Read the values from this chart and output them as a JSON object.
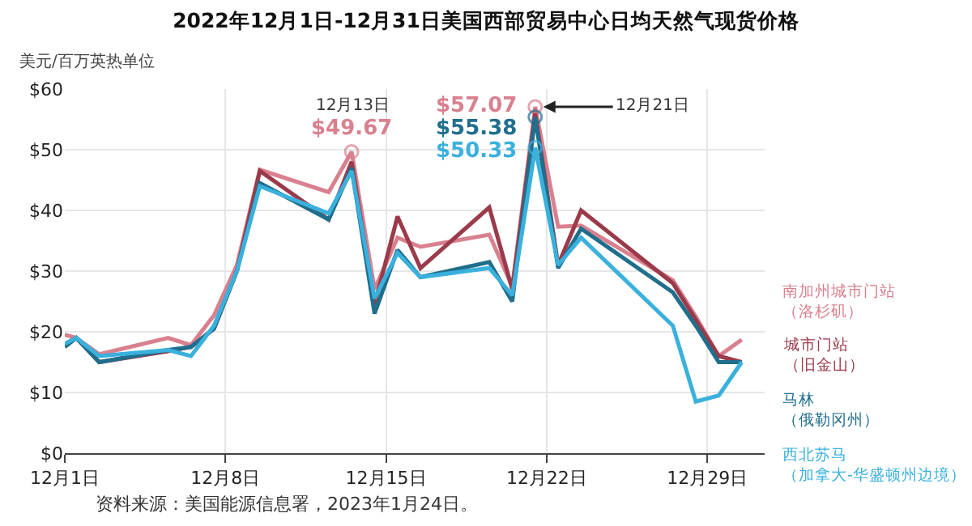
{
  "chart_data": {
    "type": "line",
    "title": "2022年12月1日-12月31日美国西部贸易中心日均天然气现货价格",
    "ylabel": "美元/百万英热单位",
    "x": [
      "2022-12-01",
      "2022-12-01T12:00",
      "2022-12-02T12:00",
      "2022-12-05T12:00",
      "2022-12-06T12:00",
      "2022-12-07T12:00",
      "2022-12-08T12:00",
      "2022-12-09T12:00",
      "2022-12-12T12:00",
      "2022-12-13T12:00",
      "2022-12-14T12:00",
      "2022-12-15T12:00",
      "2022-12-16T12:00",
      "2022-12-19T12:00",
      "2022-12-20T12:00",
      "2022-12-21T12:00",
      "2022-12-22T12:00",
      "2022-12-23T12:00",
      "2022-12-27T12:00",
      "2022-12-28T12:00",
      "2022-12-29T12:00",
      "2022-12-30T12:00"
    ],
    "xlim": [
      "2022-12-01",
      "2022-12-31T12:00"
    ],
    "xticks": [
      {
        "value": "2022-12-01",
        "label": "12月1日"
      },
      {
        "value": "2022-12-08",
        "label": "12月8日"
      },
      {
        "value": "2022-12-15",
        "label": "12月15日"
      },
      {
        "value": "2022-12-22",
        "label": "12月22日"
      },
      {
        "value": "2022-12-29",
        "label": "12月29日"
      }
    ],
    "ylim": [
      0,
      60
    ],
    "yticks": [
      {
        "value": 0,
        "label": "$0"
      },
      {
        "value": 10,
        "label": "$10"
      },
      {
        "value": 20,
        "label": "$20"
      },
      {
        "value": 30,
        "label": "$30"
      },
      {
        "value": 40,
        "label": "$40"
      },
      {
        "value": 50,
        "label": "$50"
      },
      {
        "value": 60,
        "label": "$60"
      }
    ],
    "grid": true,
    "series": [
      {
        "name": "南加州城市门站（洛杉矶）",
        "color": "#d9808f",
        "values": [
          19.5,
          19,
          16.3,
          19,
          17.8,
          22.7,
          31,
          46.7,
          43,
          49.67,
          27,
          35.5,
          34,
          36,
          27.5,
          57.07,
          37.3,
          37.5,
          28.5,
          22.5,
          16,
          18.7
        ],
        "value_labels": [
          null,
          null,
          null,
          null,
          null,
          null,
          null,
          null,
          null,
          "$49.67",
          null,
          null,
          null,
          null,
          null,
          "$57.07",
          null,
          null,
          null,
          null,
          null,
          null
        ]
      },
      {
        "name": "城市门站（旧金山）",
        "color": "#9b3a4a",
        "values": [
          18,
          19,
          15,
          16.8,
          17.5,
          20.5,
          30,
          46.5,
          38.5,
          48,
          24.5,
          39,
          30.5,
          40.5,
          27,
          56,
          31,
          40,
          28,
          22,
          16,
          15
        ]
      },
      {
        "name": "马林（俄勒冈州）",
        "color": "#1f6e8c",
        "values": [
          17.5,
          19,
          15,
          17,
          17.5,
          20.5,
          30,
          44.5,
          38.5,
          47,
          23,
          33.5,
          29,
          31.5,
          25,
          55.38,
          30.5,
          37,
          26.5,
          21,
          15,
          15
        ],
        "value_labels": [
          null,
          null,
          null,
          null,
          null,
          null,
          null,
          null,
          null,
          null,
          null,
          null,
          null,
          null,
          null,
          "$55.38",
          null,
          null,
          null,
          null,
          null,
          null
        ]
      },
      {
        "name": "西北苏马（加拿大-华盛顿州边境）",
        "color": "#3ab0dc",
        "values": [
          18,
          19,
          16,
          17,
          16,
          21,
          30,
          44,
          39.5,
          46.5,
          25.5,
          33,
          29,
          30.5,
          26,
          50.33,
          31,
          35.5,
          21,
          8.5,
          9.5,
          15
        ],
        "value_labels": [
          null,
          null,
          null,
          null,
          null,
          null,
          null,
          null,
          null,
          null,
          null,
          null,
          null,
          null,
          null,
          "$50.33",
          null,
          null,
          null,
          null,
          null,
          null
        ]
      }
    ],
    "annotations": [
      {
        "text": "12月13日",
        "x": "2022-12-13T12:00",
        "y": 49.67
      },
      {
        "text": "12月21日",
        "x": "2022-12-21T12:00",
        "y": 57.07
      },
      "资料来源：美国能源信息署，2023年1月24日。"
    ]
  }
}
